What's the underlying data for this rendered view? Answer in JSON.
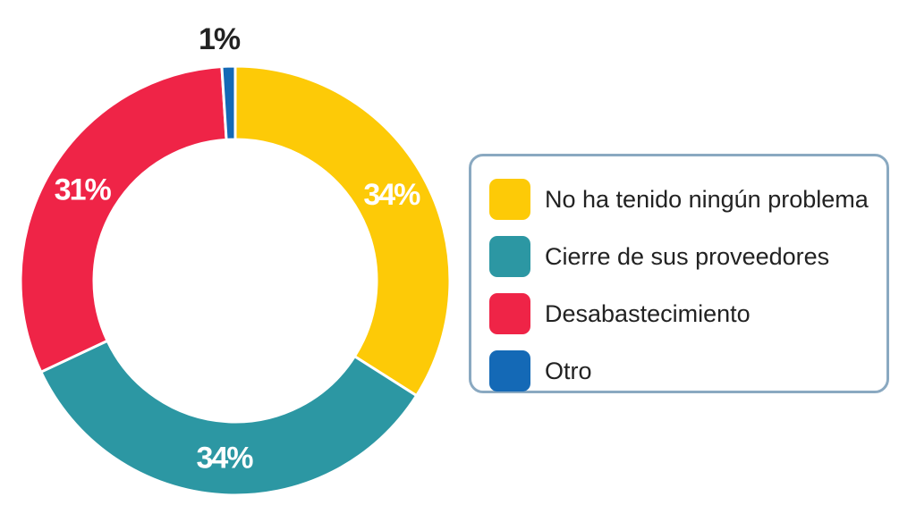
{
  "chart_data": {
    "type": "pie",
    "variant": "donut",
    "title": "",
    "slices": [
      {
        "label": "No ha tenido ningún problema",
        "value": 34,
        "value_label": "34%",
        "color": "#FDCA07",
        "label_color": "#ffffff"
      },
      {
        "label": "Cierre de sus proveedores",
        "value": 34,
        "value_label": "34%",
        "color": "#2C97A3",
        "label_color": "#ffffff"
      },
      {
        "label": "Desabastecimiento",
        "value": 31,
        "value_label": "31%",
        "color": "#EF2447",
        "label_color": "#ffffff"
      },
      {
        "label": "Otro",
        "value": 1,
        "value_label": "1%",
        "color": "#1469B6",
        "label_color": "#222222"
      }
    ],
    "start_angle_deg": 0,
    "direction": "clockwise",
    "legend": {
      "position": "right",
      "framed": true
    }
  }
}
